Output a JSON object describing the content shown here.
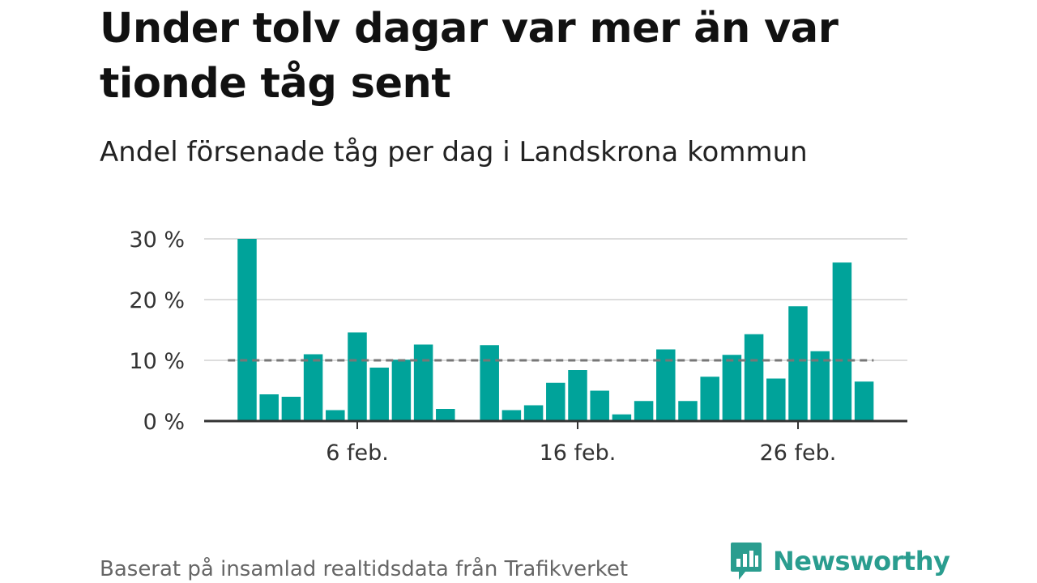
{
  "title": "Under tolv dagar var mer än var tionde tåg sent",
  "subtitle": "Andel försenade tåg per dag i Landskrona kommun",
  "footer": "Baserat på insamlad realtidsdata från Trafikverket",
  "brand": {
    "name": "Newsworthy",
    "icon": "bar-chart-speech-bubble-icon"
  },
  "colors": {
    "bar": "#00a39a",
    "reference_line": "#777777",
    "grid": "#dddddd",
    "axis": "#333333",
    "brand": "#2a9d8f"
  },
  "chart_data": {
    "type": "bar",
    "x_tick_labels": [
      "6 feb.",
      "16 feb.",
      "26 feb."
    ],
    "y_tick_labels": [
      "0 %",
      "10 %",
      "20 %",
      "30 %"
    ],
    "ylim": [
      0,
      30
    ],
    "grid": true,
    "reference_line": 10,
    "bars": [
      {
        "day": "1 feb.",
        "value": 30.0
      },
      {
        "day": "2 feb.",
        "value": 4.4
      },
      {
        "day": "3 feb.",
        "value": 4.0
      },
      {
        "day": "4 feb.",
        "value": 11.0
      },
      {
        "day": "5 feb.",
        "value": 1.8
      },
      {
        "day": "6 feb.",
        "value": 14.6
      },
      {
        "day": "7 feb.",
        "value": 8.8
      },
      {
        "day": "8 feb.",
        "value": 10.1
      },
      {
        "day": "9 feb.",
        "value": 12.6
      },
      {
        "day": "10 feb.",
        "value": 2.0
      },
      {
        "day": "11 feb.",
        "value": null
      },
      {
        "day": "12 feb.",
        "value": 12.5
      },
      {
        "day": "13 feb.",
        "value": 1.8
      },
      {
        "day": "14 feb.",
        "value": 2.6
      },
      {
        "day": "15 feb.",
        "value": 6.3
      },
      {
        "day": "16 feb.",
        "value": 8.4
      },
      {
        "day": "17 feb.",
        "value": 5.0
      },
      {
        "day": "18 feb.",
        "value": 1.1
      },
      {
        "day": "19 feb.",
        "value": 3.3
      },
      {
        "day": "20 feb.",
        "value": 11.8
      },
      {
        "day": "21 feb.",
        "value": 3.3
      },
      {
        "day": "22 feb.",
        "value": 7.3
      },
      {
        "day": "23 feb.",
        "value": 10.9
      },
      {
        "day": "24 feb.",
        "value": 14.3
      },
      {
        "day": "25 feb.",
        "value": 7.0
      },
      {
        "day": "26 feb.",
        "value": 18.9
      },
      {
        "day": "27 feb.",
        "value": 11.5
      },
      {
        "day": "28 feb.",
        "value": 26.1
      },
      {
        "day": "29 feb.",
        "value": 6.5
      }
    ]
  }
}
